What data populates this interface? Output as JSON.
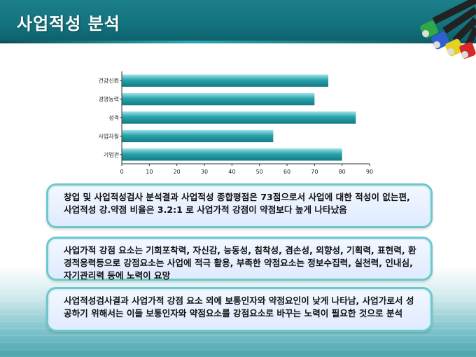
{
  "header": {
    "title": "사업적성 분석"
  },
  "chart_data": {
    "type": "bar",
    "orientation": "horizontal",
    "categories": [
      "건강신뢰",
      "경영능력",
      "성격",
      "사업자질",
      "기업관"
    ],
    "values": [
      75,
      70,
      85,
      55,
      80
    ],
    "xlim": [
      0,
      90
    ],
    "xticks": [
      0,
      10,
      20,
      30,
      40,
      50,
      60,
      70,
      80,
      90
    ],
    "grid": false,
    "bar_color": "#2aa3ac"
  },
  "notes": [
    "창업 및 사업적성검사 분석결과 사업적성 종합평점은 73점으로서 사업에 대한 적성이 없는편, 사업적성 강.약점 비율은 3.2:1 로 사업가적 강점이 약점보다 높게 나타났음",
    "사업가적 강점 요소는 기회포착력, 자신감, 능동성, 침착성, 겸손성, 외향성, 기획력, 표현력, 환경적응력등으로 강점요소는 사업에 적극 활용, 부족한 약점요소는 정보수집력, 실천력, 인내심, 자기관리력 등에 노력이 요망",
    "사업적성검사결과 사업가적 강점 요소 외에 보통인자와 약점요인이 낮게 나타남, 사업가로서 성공하기 위해서는 이들 보통인자와 약점요소를 강점요소로 바꾸는 노력이 필요한 것으로 분석"
  ]
}
